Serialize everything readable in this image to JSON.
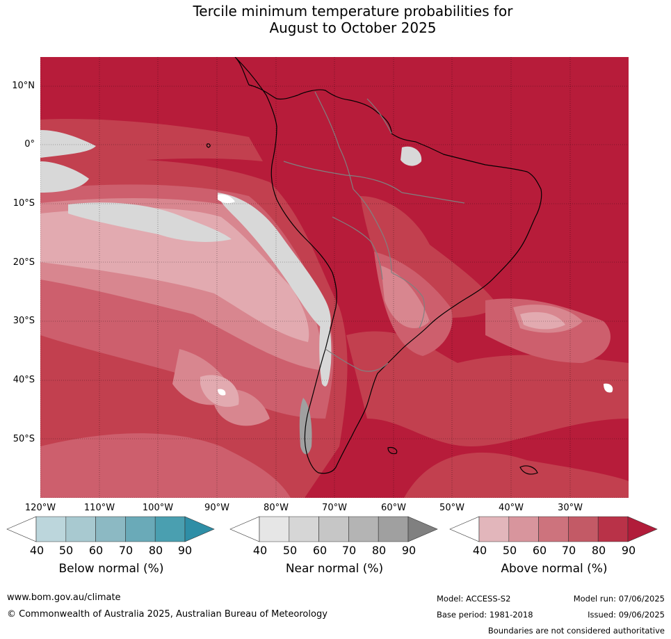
{
  "title": {
    "line1": "Tercile minimum temperature probabilities for",
    "line2": "August to October 2025"
  },
  "map": {
    "lat_labels": [
      "10°N",
      "0°",
      "10°S",
      "20°S",
      "30°S",
      "40°S",
      "50°S"
    ],
    "lon_labels": [
      "120°W",
      "110°W",
      "100°W",
      "90°W",
      "80°W",
      "70°W",
      "60°W",
      "50°W",
      "40°W",
      "30°W"
    ],
    "colors": {
      "ocean_base": "#b71c3a",
      "above_80": "#c2404f",
      "above_70": "#cd5f6d",
      "above_60": "#d8868f",
      "above_50": "#e2aab0",
      "near_normal": "#d8d8d8",
      "near_normal_dark": "#a0a0a0",
      "white": "#ffffff",
      "coastline": "#000000",
      "borders": "#808080"
    }
  },
  "colorbars": [
    {
      "name": "below",
      "title": "Below normal (%)",
      "ticks": [
        "40",
        "50",
        "60",
        "70",
        "80",
        "90"
      ],
      "colors": [
        "#ffffff",
        "#bcd6dc",
        "#a8c9d0",
        "#8cb9c3",
        "#6aaab8",
        "#4a9fb0",
        "#2e8ea6"
      ]
    },
    {
      "name": "near",
      "title": "Near normal (%)",
      "ticks": [
        "40",
        "50",
        "60",
        "70",
        "80",
        "90"
      ],
      "colors": [
        "#ffffff",
        "#e6e6e6",
        "#d6d6d6",
        "#c6c6c6",
        "#b4b4b4",
        "#a0a0a0",
        "#808080"
      ]
    },
    {
      "name": "above",
      "title": "Above normal (%)",
      "ticks": [
        "40",
        "50",
        "60",
        "70",
        "80",
        "90"
      ],
      "colors": [
        "#ffffff",
        "#e2b6bb",
        "#d8959d",
        "#cd737d",
        "#c35a66",
        "#b93248",
        "#b11c3a"
      ]
    }
  ],
  "footer": {
    "website": "www.bom.gov.au/climate",
    "copyright": "© Commonwealth of Australia 2025, Australian Bureau of Meteorology",
    "model": "Model: ACCESS-S2",
    "model_run": "Model run: 07/06/2025",
    "base_period": "Base period: 1981-2018",
    "issued": "Issued: 09/06/2025",
    "disclaimer": "Boundaries are not considered authoritative"
  }
}
